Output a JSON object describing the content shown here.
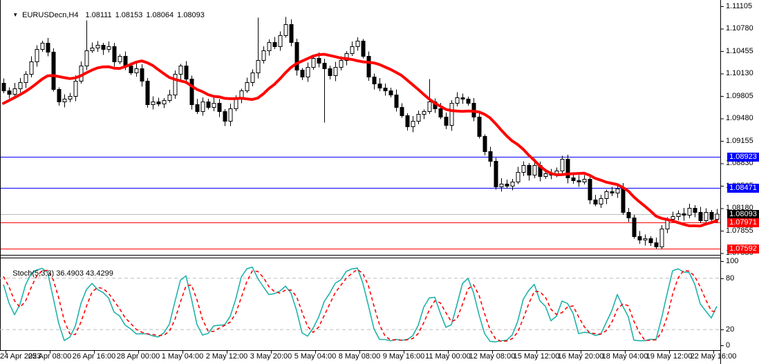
{
  "title_bar": {
    "marker_glyph": "▼",
    "symbol_period": "EURUSDecn,H4",
    "open": "1.08111",
    "high": "1.08153",
    "low": "1.08064",
    "close": "1.08093"
  },
  "price_axis": {
    "tick_labels": [
      "1.11105",
      "1.10780",
      "1.10455",
      "1.10130",
      "1.09805",
      "1.09480",
      "1.09155",
      "1.08830",
      "1.08505",
      "1.08180",
      "1.07855",
      "1.07530"
    ]
  },
  "time_axis": {
    "labels": [
      "24 Apr 2023",
      "25 Apr 08:00",
      "26 Apr 16:00",
      "28 Apr 00:00",
      "1 May 04:00",
      "2 May 12:00",
      "3 May 20:00",
      "5 May 04:00",
      "8 May 08:00",
      "9 May 16:00",
      "11 May 00:00",
      "12 May 08:00",
      "15 May 12:00",
      "16 May 20:00",
      "18 May 04:00",
      "19 May 12:00",
      "22 May 16:00"
    ]
  },
  "indicator_pane": {
    "label": "Stoch(5,3,3)",
    "k_value": "36.4903",
    "d_value": "43.4299",
    "scale": [
      {
        "label": "100",
        "value": 100
      },
      {
        "label": "80",
        "value": 80
      },
      {
        "label": "20",
        "value": 20
      },
      {
        "label": "0",
        "value": 0
      }
    ],
    "grid_levels": [
      80,
      20
    ],
    "k_color": "#20B2AA",
    "d_color": "#FF0000",
    "grid_color": "#C4C4C4"
  },
  "chart_data": {
    "type": "candlestick",
    "symbol": "EURUSDecn",
    "timeframe": "H4",
    "x_range": [
      "24 Apr 2023 00:00",
      "22 May 2023 16:00"
    ],
    "y_axis": {
      "min": 1.075,
      "max": 1.1117,
      "tick_step": 0.00325
    },
    "candle_up_fill": "#FFFFFF",
    "candle_down_fill": "#000000",
    "candle_outline": "#000000",
    "prior_closes": [
      1.093,
      1.0936,
      1.0944,
      1.0952,
      1.096,
      1.0968,
      1.0975,
      1.0981,
      1.0986,
      1.0991,
      1.0996,
      1.0999
    ],
    "closes": [
      1.0988,
      1.0983,
      1.0991,
      1.1,
      1.1012,
      1.103,
      1.1048,
      1.1057,
      1.1044,
      1.099,
      1.0972,
      1.0976,
      1.098,
      1.1002,
      1.1024,
      1.1046,
      1.105,
      1.1054,
      1.1048,
      1.1052,
      1.103,
      1.1038,
      1.1024,
      1.1014,
      1.102,
      1.1002,
      1.0968,
      1.0972,
      1.0969,
      1.0974,
      1.0982,
      1.1012,
      1.1024,
      1.1005,
      1.0968,
      1.0958,
      1.0972,
      1.0964,
      1.097,
      1.0958,
      1.0944,
      1.0962,
      1.0976,
      1.0988,
      1.1,
      1.1014,
      1.1032,
      1.1046,
      1.1058,
      1.1052,
      1.1068,
      1.1084,
      1.1058,
      1.1018,
      1.1008,
      1.1022,
      1.1035,
      1.1028,
      1.102,
      1.101,
      1.1022,
      1.1032,
      1.1042,
      1.1052,
      1.106,
      1.1038,
      1.1008,
      1.0998,
      1.0992,
      1.0988,
      1.0982,
      1.0964,
      1.0952,
      1.0936,
      1.0944,
      1.0954,
      1.0958,
      1.0972,
      1.0962,
      1.095,
      1.0938,
      1.097,
      1.0978,
      1.0976,
      1.097,
      1.095,
      1.0922,
      1.09,
      1.0886,
      1.0849,
      1.0853,
      1.085,
      1.0856,
      1.087,
      1.088,
      1.0866,
      1.088,
      1.0864,
      1.0868,
      1.0866,
      1.0872,
      1.0889,
      1.0862,
      1.0858,
      1.0856,
      1.086,
      1.083,
      1.0824,
      1.0832,
      1.0842,
      1.084,
      1.0846,
      1.0812,
      1.0804,
      1.0777,
      1.0772,
      1.0774,
      1.0768,
      1.0762,
      1.0788,
      1.0802,
      1.0806,
      1.081,
      1.0808,
      1.0818,
      1.0812,
      1.08,
      1.0812,
      1.0802,
      1.08093
    ],
    "wick_overrides": {
      "15": {
        "h": 1.109
      },
      "40": {
        "l": 1.0937
      },
      "46": {
        "h": 1.1094
      },
      "51": {
        "h": 1.1095
      },
      "58": {
        "l": 1.0942
      },
      "77": {
        "h": 1.1005
      },
      "89": {
        "l": 1.0845
      },
      "96": {
        "h": 1.089
      },
      "101": {
        "h": 1.0894
      },
      "118": {
        "l": 1.0759
      }
    },
    "ma": {
      "type": "sma",
      "period": 13,
      "color": "#FF0000",
      "width": 4
    },
    "stochastic": {
      "k_period": 5,
      "slowing": 3,
      "d_period": 3,
      "last_k": 36.4903,
      "last_d": 43.4299,
      "range": [
        0,
        100
      ]
    },
    "levels": [
      {
        "label": "1.08923",
        "price": 1.08923,
        "line_color": "#0000FF",
        "badge_bg": "#0000FF"
      },
      {
        "label": "1.08471",
        "price": 1.08471,
        "line_color": "#0000FF",
        "badge_bg": "#0000FF"
      },
      {
        "label": "1.08093",
        "price": 1.08093,
        "line_color": "#BBBBBB",
        "badge_bg": "#000000",
        "role": "bid-price"
      },
      {
        "label": "1.07971",
        "price": 1.07971,
        "line_color": "#FF0000",
        "badge_bg": "#FF0000"
      },
      {
        "label": "1.07592",
        "price": 1.07592,
        "line_color": "#FF0000",
        "badge_bg": "#FF0000"
      }
    ]
  }
}
